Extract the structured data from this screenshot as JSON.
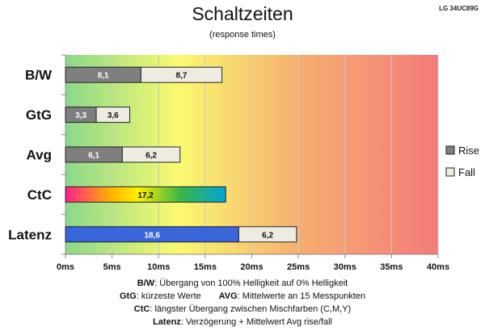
{
  "model": "LG 34UC89G",
  "chart_data": {
    "type": "bar",
    "orientation": "horizontal",
    "stacked": true,
    "title": "Schaltzeiten",
    "subtitle": "(response times)",
    "categories": [
      "B/W",
      "GtG",
      "Avg",
      "CtC",
      "Latenz"
    ],
    "series": [
      {
        "name": "Rise",
        "color": "#7f7f7f",
        "values": [
          8.1,
          3.3,
          6.1,
          null,
          null
        ]
      },
      {
        "name": "Fall",
        "color": "#eeece1",
        "values": [
          8.7,
          3.6,
          6.2,
          null,
          6.2
        ]
      }
    ],
    "ctc": {
      "value": 17.2,
      "label": "17,2"
    },
    "latenz": {
      "value": 18.6,
      "label": "18,6",
      "color": "#3a66db"
    },
    "rise_labels": [
      "8,1",
      "3,3",
      "6,1"
    ],
    "fall_labels": [
      "8,7",
      "3,6",
      "6,2",
      "6,2"
    ],
    "xlim": [
      0,
      40
    ],
    "xticks": [
      0,
      5,
      10,
      15,
      20,
      25,
      30,
      35,
      40
    ],
    "xtick_labels": [
      "0ms",
      "5ms",
      "10ms",
      "15ms",
      "20ms",
      "25ms",
      "30ms",
      "35ms",
      "40ms"
    ],
    "grid": true,
    "background_gradient": [
      "#8ad88a",
      "#fafa70",
      "#f6b070",
      "#f47a7a"
    ],
    "legend_position": "right"
  },
  "notes": {
    "line1_key": "B/W",
    "line1_text": ":  Übergang von 100% Helligkeit auf 0% Helligkeit",
    "line2_key_a": "GtG",
    "line2_text_a": ": kürzeste  Werte",
    "line2_key_b": "AVG",
    "line2_text_b": ": Mittelwerte  an 15 Messpunkten",
    "line3_key": "CtC",
    "line3_text": ": längster Übergang  zwischen Mischfarben (C,M,Y)",
    "line4_key": "Latenz",
    "line4_text": ": Verzögerung  + Mittelwert Avg rise/fall"
  }
}
